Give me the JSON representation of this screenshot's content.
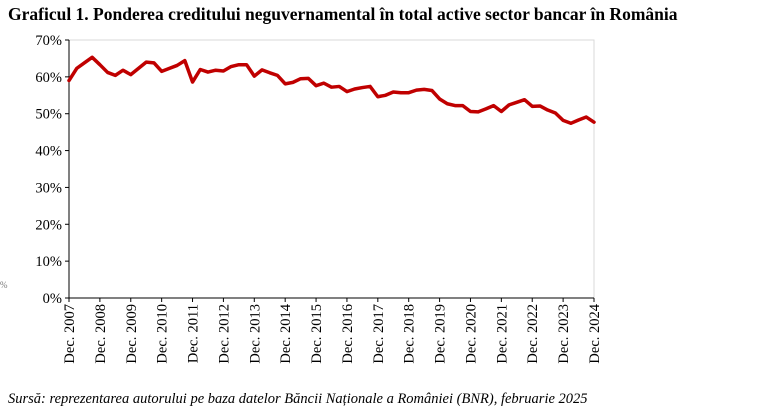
{
  "chart_data": {
    "type": "line",
    "title": "Graficul 1. Ponderea creditului neguvernamental în total active sector bancar în România",
    "xlabel": "",
    "ylabel": "",
    "ylim": [
      0,
      70
    ],
    "y_ticks": [
      "0%",
      "10%",
      "20%",
      "30%",
      "40%",
      "50%",
      "60%",
      "70%"
    ],
    "y_tick_values": [
      0,
      10,
      20,
      30,
      40,
      50,
      60,
      70
    ],
    "x_tick_labels": [
      "Dec. 2007",
      "Dec. 2008",
      "Dec. 2009",
      "Dec. 2010",
      "Dec. 2011",
      "Dec. 2012",
      "Dec. 2013",
      "Dec. 2014",
      "Dec. 2015",
      "Dec. 2016",
      "Dec. 2017",
      "Dec. 2018",
      "Dec. 2019",
      "Dec. 2020",
      "Dec. 2021",
      "Dec. 2022",
      "Dec. 2023",
      "Dec. 2024"
    ],
    "grid": false,
    "legend": "none",
    "series": [
      {
        "color": "#C00000",
        "values": [
          59.0,
          62.3,
          63.8,
          65.3,
          63.3,
          61.2,
          60.4,
          61.8,
          60.6,
          62.3,
          64.0,
          63.8,
          61.5,
          62.3,
          63.1,
          64.4,
          58.6,
          62.0,
          61.3,
          61.8,
          61.6,
          62.8,
          63.3,
          63.3,
          60.2,
          61.9,
          61.1,
          60.4,
          58.1,
          58.5,
          59.5,
          59.6,
          57.6,
          58.3,
          57.2,
          57.4,
          56.0,
          56.7,
          57.1,
          57.4,
          54.6,
          55.0,
          55.9,
          55.7,
          55.7,
          56.4,
          56.6,
          56.3,
          54.0,
          52.7,
          52.2,
          52.2,
          50.6,
          50.5,
          51.3,
          52.2,
          50.6,
          52.4,
          53.1,
          53.8,
          52.0,
          52.1,
          51.0,
          50.2,
          48.2,
          47.4,
          48.3,
          49.1,
          47.7
        ]
      }
    ]
  },
  "source_note": "Sursă: reprezentarea autorului pe baza datelor Băncii Naționale a României (BNR), februarie 2025",
  "stray_mark": "%"
}
